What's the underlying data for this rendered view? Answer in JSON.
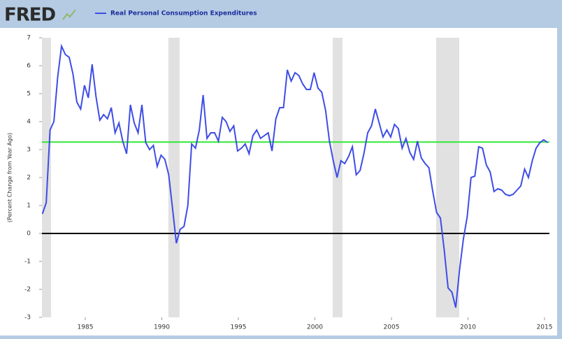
{
  "chart_data": {
    "type": "line",
    "logo": "FRED",
    "y_label": "(Percent Change from Year Ago)",
    "x": [
      1982.2,
      1982.45,
      1982.7,
      1982.95,
      1983.2,
      1983.45,
      1983.7,
      1983.95,
      1984.2,
      1984.45,
      1984.7,
      1984.95,
      1985.2,
      1985.45,
      1985.7,
      1985.95,
      1986.2,
      1986.45,
      1986.7,
      1986.95,
      1987.2,
      1987.45,
      1987.7,
      1987.95,
      1988.2,
      1988.45,
      1988.7,
      1988.95,
      1989.2,
      1989.45,
      1989.7,
      1989.95,
      1990.2,
      1990.45,
      1990.7,
      1990.95,
      1991.2,
      1991.45,
      1991.7,
      1991.95,
      1992.2,
      1992.45,
      1992.7,
      1992.95,
      1993.2,
      1993.45,
      1993.7,
      1993.95,
      1994.2,
      1994.45,
      1994.7,
      1994.95,
      1995.2,
      1995.45,
      1995.7,
      1995.95,
      1996.2,
      1996.45,
      1996.7,
      1996.95,
      1997.2,
      1997.45,
      1997.7,
      1997.95,
      1998.2,
      1998.45,
      1998.7,
      1998.95,
      1999.2,
      1999.45,
      1999.7,
      1999.95,
      2000.2,
      2000.45,
      2000.7,
      2000.95,
      2001.2,
      2001.45,
      2001.7,
      2001.95,
      2002.2,
      2002.45,
      2002.7,
      2002.95,
      2003.2,
      2003.45,
      2003.7,
      2003.95,
      2004.2,
      2004.45,
      2004.7,
      2004.95,
      2005.2,
      2005.45,
      2005.7,
      2005.95,
      2006.2,
      2006.45,
      2006.7,
      2006.95,
      2007.2,
      2007.45,
      2007.7,
      2007.95,
      2008.2,
      2008.45,
      2008.7,
      2008.95,
      2009.2,
      2009.45,
      2009.7,
      2009.95,
      2010.2,
      2010.45,
      2010.7,
      2010.95,
      2011.2,
      2011.45,
      2011.7,
      2011.95,
      2012.2,
      2012.45,
      2012.7,
      2012.95,
      2013.2,
      2013.45,
      2013.7,
      2013.95,
      2014.2,
      2014.45,
      2014.7,
      2014.95,
      2015.2
    ],
    "series": [
      {
        "name": "Real Personal Consumption Expenditures",
        "color": "#3e4de6",
        "values": [
          0.7,
          1.1,
          3.7,
          4.0,
          5.6,
          6.7,
          6.4,
          6.3,
          5.7,
          4.7,
          4.45,
          5.3,
          4.85,
          6.05,
          4.9,
          4.05,
          4.25,
          4.1,
          4.5,
          3.6,
          3.95,
          3.3,
          2.85,
          4.6,
          3.95,
          3.6,
          4.6,
          3.25,
          3.0,
          3.15,
          2.4,
          2.8,
          2.65,
          2.1,
          0.9,
          -0.35,
          0.15,
          0.25,
          1.0,
          3.2,
          3.05,
          3.7,
          4.95,
          3.4,
          3.6,
          3.6,
          3.3,
          4.15,
          4.0,
          3.65,
          3.85,
          2.95,
          3.05,
          3.2,
          2.85,
          3.5,
          3.7,
          3.4,
          3.5,
          3.6,
          2.95,
          4.1,
          4.5,
          4.5,
          5.85,
          5.45,
          5.75,
          5.65,
          5.35,
          5.15,
          5.15,
          5.75,
          5.2,
          5.05,
          4.4,
          3.3,
          2.6,
          2.0,
          2.6,
          2.5,
          2.75,
          3.1,
          2.1,
          2.25,
          2.85,
          3.6,
          3.85,
          4.45,
          3.95,
          3.45,
          3.7,
          3.45,
          3.9,
          3.75,
          3.05,
          3.4,
          2.9,
          2.65,
          3.3,
          2.7,
          2.5,
          2.35,
          1.5,
          0.75,
          0.55,
          -0.6,
          -1.95,
          -2.1,
          -2.65,
          -1.3,
          -0.2,
          0.6,
          2.0,
          2.05,
          3.1,
          3.05,
          2.45,
          2.2,
          1.5,
          1.6,
          1.55,
          1.4,
          1.35,
          1.4,
          1.55,
          1.7,
          2.3,
          2.0,
          2.6,
          3.05,
          3.25,
          3.35,
          3.25
        ]
      }
    ],
    "recessions": [
      [
        1981.5,
        1982.76
      ],
      [
        1990.43,
        1991.16
      ],
      [
        2001.16,
        2001.8
      ],
      [
        2007.92,
        2009.43
      ]
    ],
    "recession_color": "#e1e1e1",
    "reference_lines": [
      {
        "value": 3.27,
        "color": "#33e833"
      },
      {
        "value": 0,
        "color": "#000000"
      }
    ],
    "xlim": [
      1982.17,
      2015.32
    ],
    "xticks": [
      1985,
      1990,
      1995,
      2000,
      2005,
      2010,
      2015
    ],
    "ylim": [
      -3,
      7
    ],
    "yticks": [
      -3,
      -2,
      -1,
      0,
      1,
      2,
      3,
      4,
      5,
      6,
      7
    ]
  }
}
